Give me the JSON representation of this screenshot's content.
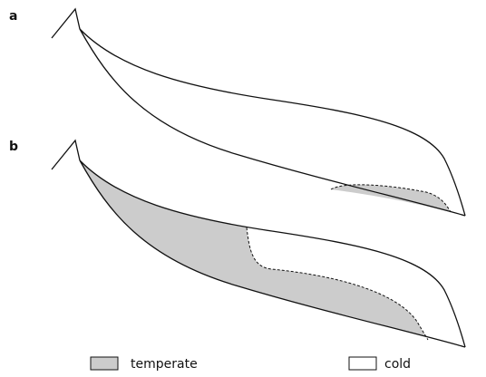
{
  "panels": [
    {
      "label": "a"
    },
    {
      "label": "b"
    }
  ],
  "legend": [
    {
      "label": "temperate"
    },
    {
      "label": "cold"
    }
  ]
}
